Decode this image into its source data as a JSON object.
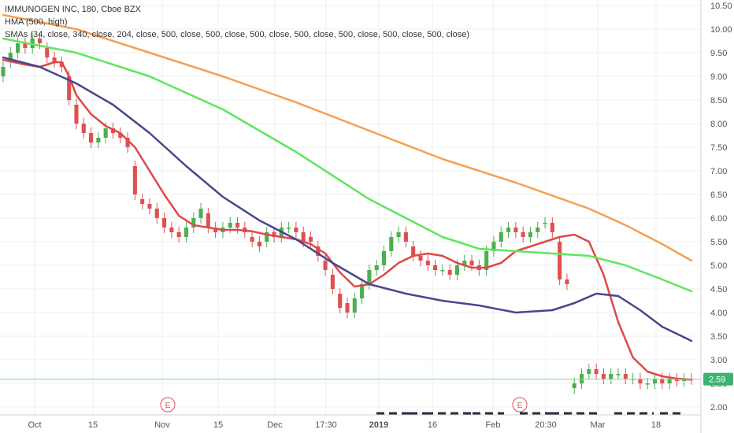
{
  "legend": {
    "title": "IMMUNOGEN INC, 180, Cboe BZX",
    "hma": "HMA (500, high)",
    "smas": "SMAs (34, close, 340, close, 204, close, 500, close, 500, close, 500, close, 500, close, 500, close, 500, close, 500, close)"
  },
  "price_tag": "2.59",
  "earnings_marker": "E",
  "chart_data": {
    "type": "line",
    "title": "IMMUNOGEN INC, 180, Cboe BZX",
    "x_ticks": [
      "Oct",
      "15",
      "Nov",
      "15",
      "Dec",
      "17:30",
      "2019",
      "16",
      "Feb",
      "20:30",
      "Mar",
      "18"
    ],
    "y_ticks": [
      "2.00",
      "2.50",
      "3.00",
      "3.50",
      "4.00",
      "4.50",
      "5.00",
      "5.50",
      "6.00",
      "6.50",
      "7.00",
      "7.50",
      "8.00",
      "8.50",
      "9.00",
      "9.50",
      "10.00",
      "10.50"
    ],
    "ylim": [
      1.9,
      10.55
    ],
    "last_price": 2.59,
    "colors": {
      "hma": "#e04848",
      "sma_green": "#5ee65e",
      "sma_orange": "#f5a050",
      "sma_navy": "#4a4590",
      "up": "#4caf50",
      "down": "#e05050",
      "price_line": "#7fd4a6",
      "grid": "#eef0f2",
      "earnings": "#e05050"
    },
    "series": [
      {
        "name": "HMA (500, high)",
        "color": "#e04848",
        "x": [
          0,
          3,
          5,
          7,
          8,
          9,
          10,
          12,
          14,
          16,
          18,
          20,
          22,
          24,
          26,
          28,
          30,
          32,
          34,
          36,
          38,
          40,
          42,
          44,
          46,
          48,
          50,
          52,
          54,
          56,
          58,
          60,
          62,
          64,
          66,
          68,
          70,
          72,
          74,
          76,
          78,
          80,
          82,
          84,
          86,
          88,
          90,
          92,
          94
        ],
        "y": [
          9.35,
          9.25,
          9.2,
          9.3,
          9.3,
          9.0,
          8.6,
          8.2,
          7.95,
          7.8,
          7.5,
          7.0,
          6.5,
          6.05,
          5.85,
          5.8,
          5.75,
          5.75,
          5.72,
          5.65,
          5.6,
          5.55,
          5.45,
          5.25,
          4.85,
          4.55,
          4.6,
          4.8,
          5.05,
          5.2,
          5.25,
          5.2,
          5.05,
          4.95,
          4.95,
          5.05,
          5.3,
          5.4,
          5.5,
          5.6,
          5.65,
          5.5,
          4.8,
          3.8,
          3.05,
          2.75,
          2.65,
          2.6,
          2.58
        ]
      },
      {
        "name": "SMA (500, close)",
        "color": "#f5a050",
        "x": [
          0,
          10,
          20,
          30,
          40,
          50,
          60,
          70,
          80,
          85,
          90,
          94
        ],
        "y": [
          10.3,
          10.0,
          9.5,
          9.0,
          8.45,
          7.85,
          7.25,
          6.75,
          6.2,
          5.85,
          5.45,
          5.1
        ]
      },
      {
        "name": "SMA (340, close)",
        "color": "#5ee65e",
        "x": [
          0,
          10,
          20,
          30,
          40,
          50,
          60,
          65,
          70,
          75,
          80,
          85,
          90,
          94
        ],
        "y": [
          9.8,
          9.5,
          9.0,
          8.3,
          7.4,
          6.4,
          5.6,
          5.35,
          5.3,
          5.25,
          5.2,
          5.0,
          4.7,
          4.45
        ]
      },
      {
        "name": "SMA (204, close)",
        "color": "#4a4590",
        "x": [
          0,
          5,
          10,
          15,
          20,
          25,
          30,
          35,
          40,
          45,
          50,
          55,
          60,
          65,
          70,
          75,
          78,
          81,
          84,
          87,
          90,
          94
        ],
        "y": [
          9.4,
          9.2,
          8.85,
          8.4,
          7.8,
          7.1,
          6.45,
          5.95,
          5.55,
          5.05,
          4.6,
          4.4,
          4.25,
          4.15,
          4.0,
          4.05,
          4.2,
          4.4,
          4.35,
          4.05,
          3.7,
          3.4
        ]
      }
    ],
    "candles": {
      "x": [
        0,
        1,
        2,
        3,
        4,
        5,
        6,
        7,
        8,
        9,
        10,
        11,
        12,
        13,
        14,
        15,
        16,
        17,
        18,
        19,
        20,
        21,
        22,
        23,
        24,
        25,
        26,
        27,
        28,
        29,
        30,
        31,
        32,
        33,
        34,
        35,
        36,
        37,
        38,
        39,
        40,
        41,
        42,
        43,
        44,
        45,
        46,
        47,
        48,
        49,
        50,
        51,
        52,
        53,
        54,
        55,
        56,
        57,
        58,
        59,
        60,
        61,
        62,
        63,
        64,
        65,
        66,
        67,
        68,
        69,
        70,
        71,
        72,
        73,
        74,
        75,
        76,
        77,
        78,
        79,
        80,
        81,
        82,
        83,
        84,
        85,
        86,
        87,
        88,
        89,
        90,
        91,
        92,
        93,
        94
      ],
      "close": [
        9.2,
        9.5,
        9.7,
        9.6,
        9.8,
        9.7,
        9.4,
        9.3,
        9.2,
        8.5,
        8.0,
        7.8,
        7.6,
        7.7,
        7.9,
        7.8,
        7.7,
        7.5,
        6.5,
        6.3,
        6.2,
        6.0,
        5.8,
        5.7,
        5.6,
        5.8,
        6.0,
        6.2,
        5.8,
        5.7,
        5.8,
        5.9,
        5.8,
        5.7,
        5.5,
        5.4,
        5.7,
        5.6,
        5.8,
        5.8,
        5.7,
        5.5,
        5.5,
        5.2,
        4.9,
        4.5,
        4.1,
        4.0,
        4.3,
        4.6,
        4.9,
        5.0,
        5.3,
        5.6,
        5.7,
        5.5,
        5.2,
        5.1,
        5.0,
        4.9,
        4.9,
        4.8,
        5.0,
        5.1,
        5.0,
        4.9,
        5.3,
        5.5,
        5.7,
        5.8,
        5.7,
        5.6,
        5.7,
        5.8,
        5.9,
        5.7,
        4.7,
        4.6,
        2.5,
        2.7,
        2.8,
        2.7,
        2.6,
        2.7,
        2.7,
        2.6,
        2.6,
        2.5,
        2.5,
        2.6,
        2.5,
        2.6,
        2.55,
        2.6,
        2.59
      ],
      "open": [
        9.0,
        9.3,
        9.5,
        9.7,
        9.6,
        9.8,
        9.6,
        9.4,
        9.3,
        9.0,
        8.4,
        8.0,
        7.8,
        7.6,
        7.7,
        7.9,
        7.8,
        7.7,
        7.1,
        6.4,
        6.3,
        6.2,
        6.0,
        5.8,
        5.7,
        5.6,
        5.8,
        6.0,
        6.1,
        5.8,
        5.7,
        5.8,
        5.9,
        5.8,
        5.6,
        5.5,
        5.5,
        5.7,
        5.6,
        5.8,
        5.8,
        5.7,
        5.6,
        5.4,
        5.1,
        4.8,
        4.4,
        4.2,
        4.0,
        4.3,
        4.6,
        4.9,
        5.0,
        5.3,
        5.6,
        5.7,
        5.4,
        5.2,
        5.1,
        5.0,
        4.9,
        4.9,
        4.8,
        5.0,
        5.1,
        5.0,
        4.9,
        5.3,
        5.5,
        5.7,
        5.8,
        5.7,
        5.6,
        5.7,
        5.9,
        5.9,
        5.5,
        4.7,
        2.4,
        2.5,
        2.7,
        2.8,
        2.7,
        2.6,
        2.7,
        2.7,
        2.6,
        2.6,
        2.5,
        2.5,
        2.6,
        2.5,
        2.6,
        2.55,
        2.6
      ]
    }
  }
}
